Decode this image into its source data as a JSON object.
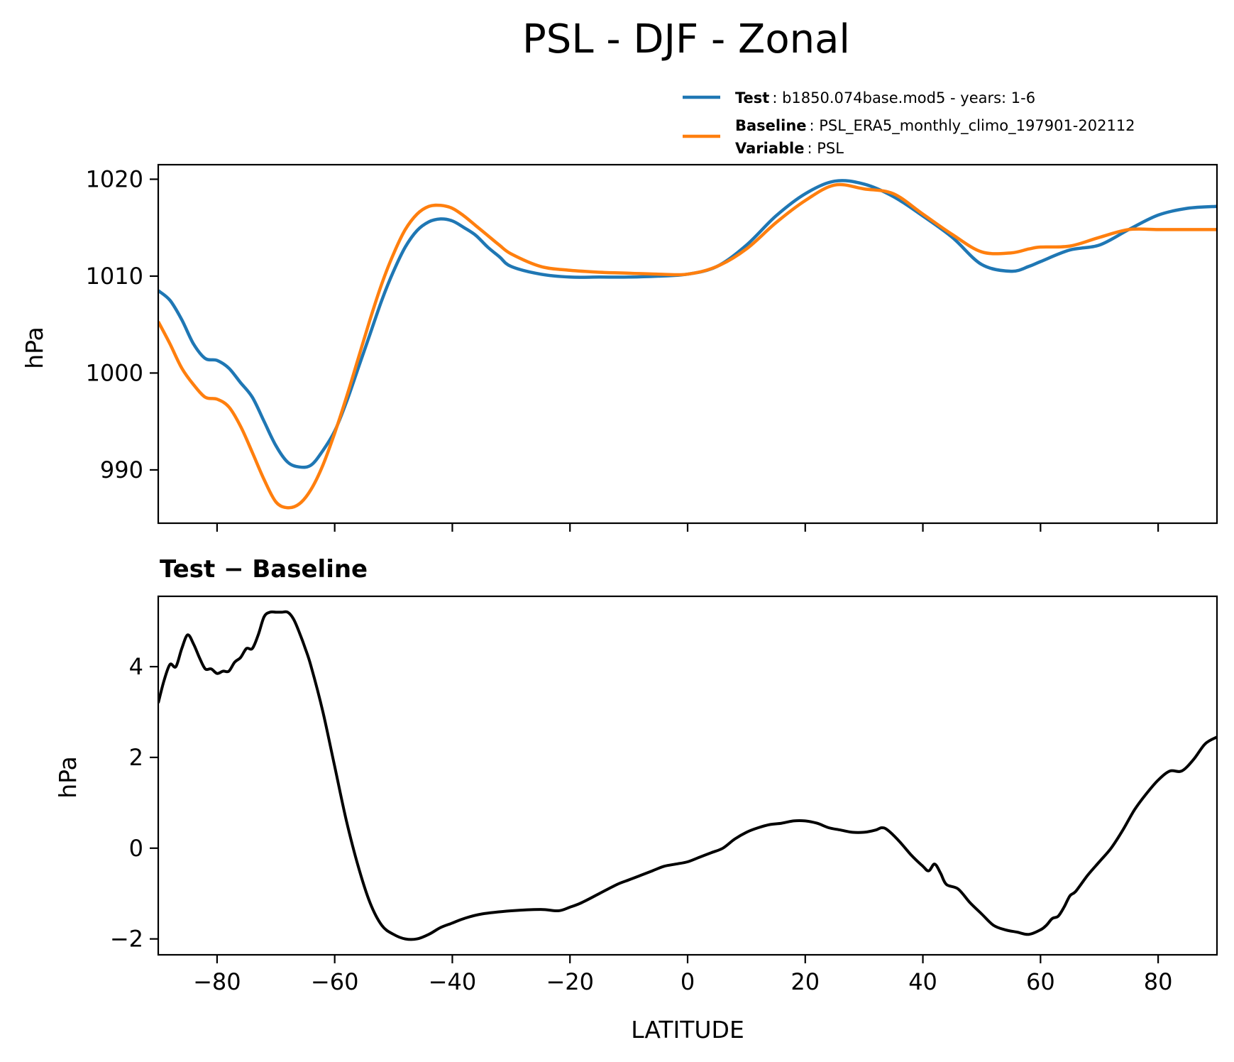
{
  "colors": {
    "test": "#1f77b4",
    "baseline": "#ff7f0e",
    "diff": "#000000"
  },
  "figure_title": "PSL - DJF - Zonal",
  "legend": {
    "items": [
      {
        "key": "Test",
        "value": ": b1850.074base.mod5 - years: 1-6",
        "color": "#1f77b4"
      },
      {
        "key": "Baseline",
        "value": ": PSL_ERA5_monthly_climo_197901-202112",
        "color": "#ff7f0e"
      },
      {
        "key": "Variable",
        "value": ": PSL"
      }
    ],
    "placement": "above top-right"
  },
  "chart_data": [
    {
      "type": "line",
      "ylabel": "hPa",
      "xlim": [
        -90,
        90
      ],
      "ylim": [
        984.5,
        1021.5
      ],
      "yticks": [
        990,
        1000,
        1010,
        1020
      ],
      "xticks": [
        -80,
        -60,
        -40,
        -20,
        0,
        20,
        40,
        60,
        80
      ],
      "grid": false,
      "series": [
        {
          "name": "Test",
          "x": [
            -90,
            -88,
            -86,
            -84,
            -82,
            -80,
            -78,
            -76,
            -74,
            -72,
            -70,
            -68,
            -66,
            -64,
            -62,
            -60,
            -58,
            -56,
            -54,
            -52,
            -50,
            -48,
            -46,
            -44,
            -42,
            -40,
            -38,
            -36,
            -34,
            -32,
            -30,
            -25,
            -20,
            -15,
            -10,
            -5,
            0,
            5,
            10,
            15,
            20,
            25,
            30,
            35,
            40,
            45,
            50,
            55,
            58,
            60,
            65,
            70,
            75,
            80,
            85,
            90
          ],
          "y": [
            1008.5,
            1007.5,
            1005.5,
            1003,
            1001.5,
            1001.3,
            1000.5,
            999,
            997.5,
            995,
            992.5,
            990.8,
            990.3,
            990.5,
            992,
            994,
            997,
            1000.5,
            1004,
            1007.5,
            1010.5,
            1013,
            1014.7,
            1015.6,
            1015.9,
            1015.7,
            1015,
            1014.2,
            1013,
            1012,
            1011,
            1010.2,
            1009.9,
            1009.9,
            1009.9,
            1010.0,
            1010.2,
            1011.0,
            1013.2,
            1016.2,
            1018.5,
            1019.8,
            1019.5,
            1018.2,
            1016.2,
            1014.0,
            1011.2,
            1010.5,
            1011.0,
            1011.5,
            1012.7,
            1013.2,
            1014.8,
            1016.3,
            1017.0,
            1017.2
          ]
        },
        {
          "name": "Baseline",
          "x": [
            -90,
            -88,
            -86,
            -84,
            -82,
            -80,
            -78,
            -76,
            -74,
            -72,
            -70,
            -68,
            -66,
            -64,
            -62,
            -60,
            -58,
            -56,
            -54,
            -52,
            -50,
            -48,
            -46,
            -44,
            -42,
            -40,
            -38,
            -36,
            -34,
            -32,
            -30,
            -25,
            -20,
            -15,
            -10,
            -5,
            0,
            5,
            10,
            15,
            20,
            25,
            30,
            35,
            40,
            45,
            50,
            55,
            58,
            60,
            65,
            70,
            75,
            80,
            85,
            90
          ],
          "y": [
            1005.3,
            1003,
            1000.5,
            998.8,
            997.5,
            997.3,
            996.5,
            994.5,
            991.8,
            989,
            986.7,
            986.1,
            986.5,
            988,
            990.5,
            993.8,
            997.5,
            1001.5,
            1005.5,
            1009.2,
            1012.3,
            1014.8,
            1016.4,
            1017.2,
            1017.3,
            1017.0,
            1016.2,
            1015.2,
            1014.2,
            1013.2,
            1012.3,
            1011.0,
            1010.6,
            1010.4,
            1010.3,
            1010.2,
            1010.2,
            1011.0,
            1012.8,
            1015.5,
            1017.8,
            1019.4,
            1019.0,
            1018.5,
            1016.4,
            1014.3,
            1012.5,
            1012.4,
            1012.8,
            1013.0,
            1013.1,
            1014.0,
            1014.8,
            1014.8,
            1014.8,
            1014.8
          ]
        }
      ]
    },
    {
      "type": "line",
      "title": "Test − Baseline",
      "xlabel": "LATITUDE",
      "ylabel": "hPa",
      "xlim": [
        -90,
        90
      ],
      "ylim": [
        -2.35,
        5.55
      ],
      "yticks": [
        -2,
        0,
        2,
        4
      ],
      "xticks": [
        -80,
        -60,
        -40,
        -20,
        0,
        20,
        40,
        60,
        80
      ],
      "grid": false,
      "series": [
        {
          "name": "Test − Baseline",
          "x": [
            -90,
            -89,
            -88,
            -87,
            -86,
            -85,
            -84,
            -83,
            -82,
            -81,
            -80,
            -79,
            -78,
            -77,
            -76,
            -75,
            -74,
            -73,
            -72,
            -71,
            -70,
            -69,
            -68,
            -67,
            -66,
            -65,
            -64,
            -62,
            -60,
            -58,
            -56,
            -54,
            -52,
            -50,
            -48,
            -46,
            -44,
            -42,
            -40,
            -38,
            -35,
            -30,
            -25,
            -22,
            -20,
            -18,
            -15,
            -12,
            -10,
            -8,
            -6,
            -4,
            -2,
            0,
            2,
            4,
            6,
            8,
            10,
            12,
            14,
            16,
            18,
            20,
            22,
            24,
            26,
            28,
            30,
            32,
            33,
            34,
            36,
            38,
            40,
            41,
            42,
            43,
            44,
            46,
            48,
            50,
            52,
            54,
            56,
            58,
            60,
            61,
            62,
            63,
            64,
            65,
            66,
            68,
            70,
            72,
            74,
            76,
            78,
            80,
            82,
            84,
            86,
            88,
            90
          ],
          "y": [
            3.2,
            3.7,
            4.05,
            4.0,
            4.4,
            4.7,
            4.5,
            4.2,
            3.95,
            3.95,
            3.85,
            3.9,
            3.9,
            4.1,
            4.2,
            4.4,
            4.4,
            4.7,
            5.1,
            5.2,
            5.2,
            5.2,
            5.2,
            5.05,
            4.75,
            4.4,
            4.0,
            3.0,
            1.8,
            0.6,
            -0.4,
            -1.2,
            -1.7,
            -1.9,
            -2.0,
            -2.0,
            -1.9,
            -1.75,
            -1.65,
            -1.55,
            -1.45,
            -1.38,
            -1.35,
            -1.38,
            -1.3,
            -1.2,
            -1.0,
            -0.8,
            -0.7,
            -0.6,
            -0.5,
            -0.4,
            -0.35,
            -0.3,
            -0.2,
            -0.1,
            0.0,
            0.2,
            0.35,
            0.45,
            0.52,
            0.55,
            0.6,
            0.6,
            0.55,
            0.45,
            0.4,
            0.35,
            0.35,
            0.4,
            0.45,
            0.4,
            0.15,
            -0.15,
            -0.4,
            -0.5,
            -0.35,
            -0.55,
            -0.8,
            -0.9,
            -1.2,
            -1.45,
            -1.7,
            -1.8,
            -1.85,
            -1.9,
            -1.8,
            -1.7,
            -1.55,
            -1.5,
            -1.3,
            -1.05,
            -0.95,
            -0.6,
            -0.3,
            0.0,
            0.4,
            0.85,
            1.2,
            1.5,
            1.7,
            1.7,
            1.95,
            2.3,
            2.45
          ]
        }
      ]
    }
  ]
}
